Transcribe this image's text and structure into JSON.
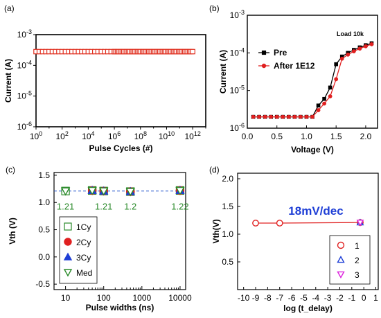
{
  "chart_data": [
    {
      "panel_label": "(a)",
      "type": "scatter",
      "xlabel": "Pulse Cycles (#)",
      "ylabel": "Current (A)",
      "xscale": "log",
      "yscale": "log",
      "xlim_exp": [
        0,
        13
      ],
      "ylim_exp": [
        -6,
        -3
      ],
      "xticks": [
        "10^0",
        "10^2",
        "10^4",
        "10^6",
        "10^8",
        "10^10",
        "10^12"
      ],
      "yticks": [
        "10^-3",
        "10^-4",
        "10^-5",
        "10^-6"
      ],
      "series": [
        {
          "marker": "open-square",
          "color": "#e03020",
          "x_exp_range": [
            0,
            12
          ],
          "y": 0.00028
        }
      ]
    },
    {
      "panel_label": "(b)",
      "type": "line",
      "annotation": "Load 10k",
      "xlabel": "Voltage (V)",
      "ylabel": "Current (A)",
      "yscale": "log",
      "xlim": [
        0,
        2.2
      ],
      "ylim_exp": [
        -6,
        -3
      ],
      "xticks": [
        "0.0",
        "0.5",
        "1.0",
        "1.5",
        "2.0"
      ],
      "yticks": [
        "10^-3",
        "10^-4",
        "10^-5",
        "10^-6"
      ],
      "legend_position": "upper-left",
      "series": [
        {
          "name": "Pre",
          "color": "#000000",
          "marker": "filled-square",
          "x": [
            0.1,
            0.2,
            0.3,
            0.4,
            0.5,
            0.6,
            0.7,
            0.8,
            0.9,
            1.0,
            1.1,
            1.2,
            1.3,
            1.4,
            1.5,
            1.6,
            1.7,
            1.8,
            1.9,
            2.0,
            2.1
          ],
          "y": [
            2e-06,
            2e-06,
            2e-06,
            2e-06,
            2e-06,
            2e-06,
            2e-06,
            2e-06,
            2e-06,
            2e-06,
            2e-06,
            4e-06,
            6e-06,
            1.2e-05,
            5e-05,
            8e-05,
            0.0001,
            0.00012,
            0.00014,
            0.00016,
            0.00018
          ]
        },
        {
          "name": "After 1E12",
          "color": "#e02020",
          "marker": "filled-circle",
          "x": [
            0.1,
            0.2,
            0.3,
            0.4,
            0.5,
            0.6,
            0.7,
            0.8,
            0.9,
            1.0,
            1.1,
            1.2,
            1.3,
            1.4,
            1.5,
            1.6,
            1.7,
            1.8,
            1.9,
            2.0,
            2.1
          ],
          "y": [
            2e-06,
            2e-06,
            2e-06,
            2e-06,
            2e-06,
            2e-06,
            2e-06,
            2e-06,
            2e-06,
            2e-06,
            2e-06,
            3e-06,
            4.5e-06,
            7e-06,
            2e-05,
            7e-05,
            9e-05,
            0.00011,
            0.00013,
            0.00015,
            0.00017
          ]
        }
      ]
    },
    {
      "panel_label": "(c)",
      "type": "scatter",
      "xlabel": "Pulse widths (ns)",
      "ylabel": "Vth (V)",
      "xscale": "log",
      "xlim": [
        5,
        14000
      ],
      "ylim": [
        -0.6,
        1.55
      ],
      "xticks": [
        10,
        100,
        1000,
        10000
      ],
      "xtick_labels": [
        "10",
        "100",
        "1000",
        "10000"
      ],
      "yticks": [
        1.5,
        1.0,
        0.5,
        0.0,
        -0.5
      ],
      "ytick_labels": [
        "1.5",
        "1.0",
        "0.5",
        "0.0",
        "-0.5"
      ],
      "reference_line": {
        "y": 1.21,
        "style": "dashed",
        "color": "#2255cc"
      },
      "categories": [
        10,
        50,
        100,
        500,
        10000
      ],
      "series": [
        {
          "name": "1Cy",
          "marker": "open-square",
          "color": "#2a8a2a",
          "x": [
            10,
            50,
            100,
            500,
            10000
          ],
          "values": [
            1.21,
            1.22,
            1.21,
            1.2,
            1.22
          ]
        },
        {
          "name": "2Cy",
          "marker": "filled-circle",
          "color": "#e02020",
          "x": [
            50,
            100,
            500,
            10000
          ],
          "values": [
            1.22,
            1.21,
            1.2,
            1.22
          ]
        },
        {
          "name": "3Cy",
          "marker": "filled-triangle-up",
          "color": "#1f3fd6",
          "x": [
            50,
            100,
            500,
            10000
          ],
          "values": [
            1.22,
            1.21,
            1.2,
            1.22
          ]
        },
        {
          "name": "Med",
          "marker": "open-triangle-down",
          "color": "#2a8a2a",
          "x": [
            10,
            50,
            100,
            500,
            10000
          ],
          "values": [
            1.21,
            1.22,
            1.21,
            1.2,
            1.22
          ]
        }
      ],
      "annotations": [
        {
          "text": "1.21",
          "x": 10
        },
        {
          "text": "1.21",
          "x": 100
        },
        {
          "text": "1.2",
          "x": 500
        },
        {
          "text": "1.22",
          "x": 10000
        }
      ],
      "legend_position": "lower-left"
    },
    {
      "panel_label": "(d)",
      "type": "line",
      "annotation": "18mV/dec",
      "xlabel": "log (t_delay)",
      "ylabel": "Vth(V)",
      "xlim": [
        -10.5,
        1.2
      ],
      "ylim": [
        0,
        2.1
      ],
      "xticks": [
        -10,
        -9,
        -8,
        -7,
        -6,
        -5,
        -4,
        -3,
        -2,
        -1,
        0,
        1
      ],
      "yticks": [
        2.0,
        1.5,
        1.0,
        0.5
      ],
      "ytick_labels": [
        "2.0",
        "1.5",
        "1.0",
        "0.5"
      ],
      "series": [
        {
          "name": "1",
          "marker": "open-circle",
          "color": "#e02020",
          "line": true,
          "x": [
            -9,
            -7,
            -0.3
          ],
          "y": [
            1.2,
            1.2,
            1.21
          ]
        },
        {
          "name": "2",
          "marker": "open-triangle-up",
          "color": "#1f3fd6",
          "x": [
            -0.3
          ],
          "y": [
            1.21
          ]
        },
        {
          "name": "3",
          "marker": "open-triangle-down",
          "color": "#dd22dd",
          "x": [
            -0.3
          ],
          "y": [
            1.21
          ]
        }
      ],
      "legend_position": "lower-right"
    }
  ]
}
